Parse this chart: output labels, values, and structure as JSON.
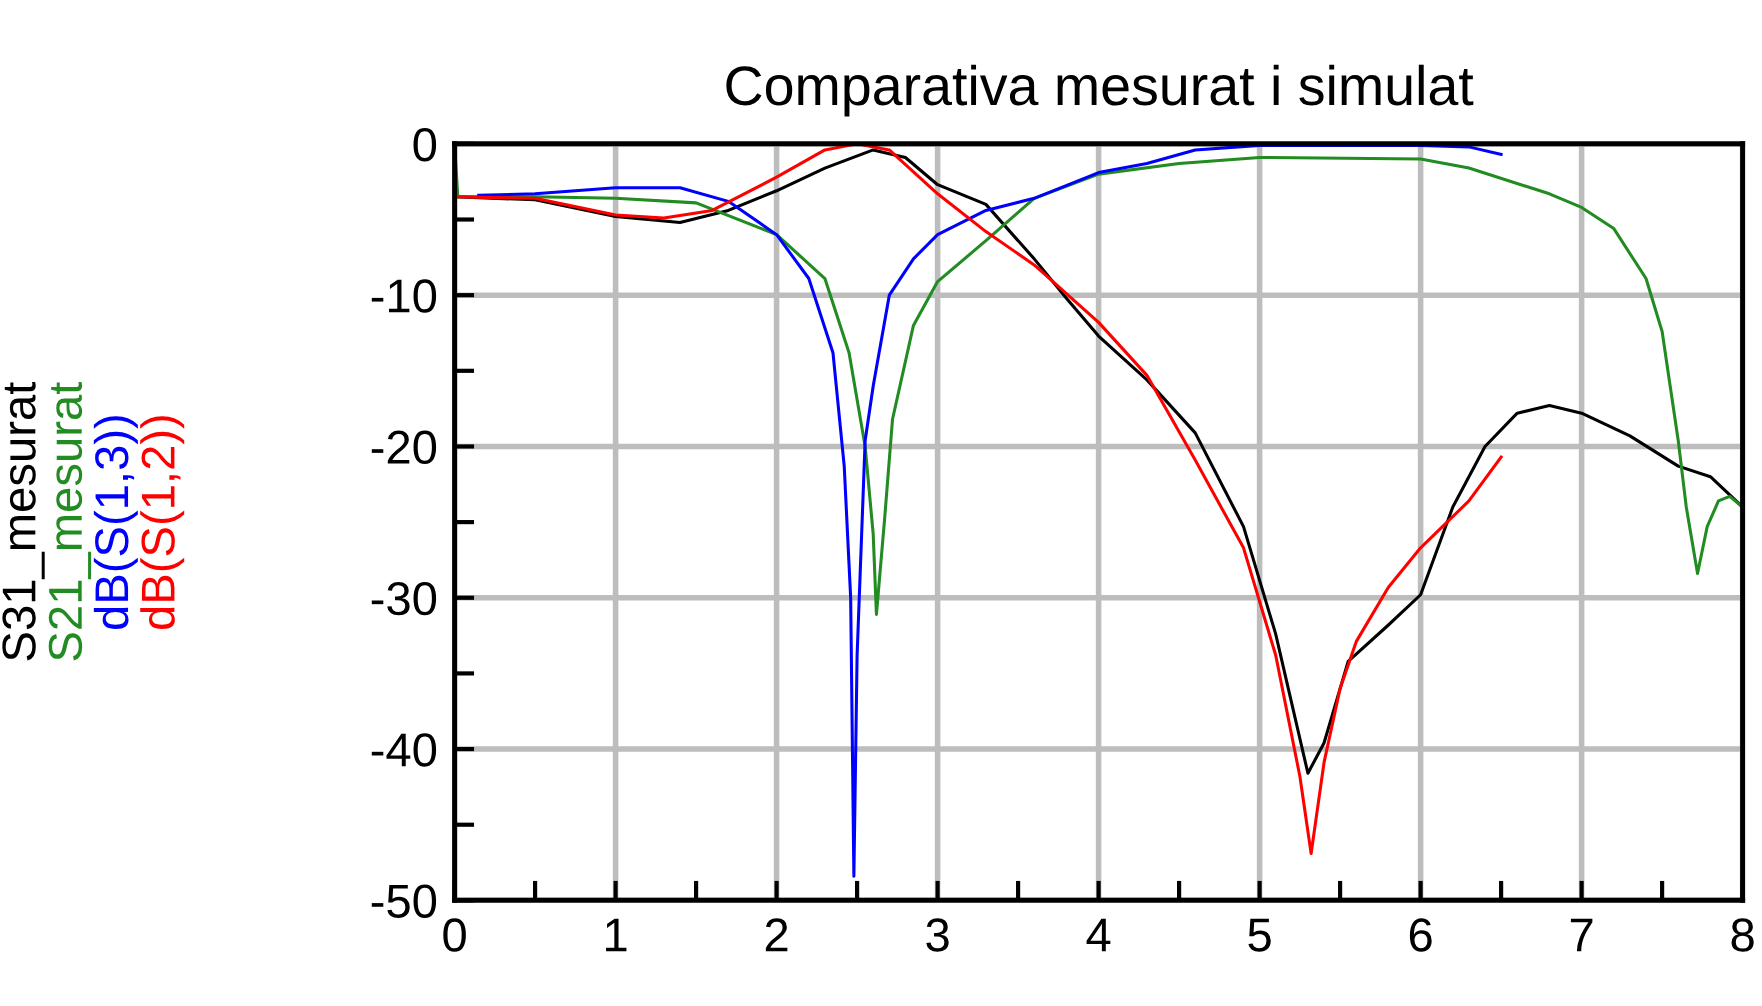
{
  "chart_data": {
    "type": "line",
    "title": "Comparativa mesurat i simulat",
    "xlim": [
      0,
      8
    ],
    "ylim": [
      -50,
      0
    ],
    "xticks": [
      0,
      {
        "value": 0.5,
        "label": null
      },
      1,
      {
        "value": 1.5,
        "label": null
      },
      2,
      {
        "value": 2.5,
        "label": null
      },
      3,
      {
        "value": 3.5,
        "label": null
      },
      4,
      {
        "value": 4.5,
        "label": null
      },
      5,
      {
        "value": 5.5,
        "label": null
      },
      6,
      {
        "value": 6.5,
        "label": null
      },
      7,
      {
        "value": 7.5,
        "label": null
      },
      8
    ],
    "yticks": [
      -50,
      {
        "value": -45,
        "label": null
      },
      -40,
      {
        "value": -35,
        "label": null
      },
      -30,
      {
        "value": -25,
        "label": null
      },
      -20,
      {
        "value": -15,
        "label": null
      },
      -10,
      {
        "value": -5,
        "label": null
      },
      0
    ],
    "grid": true,
    "legend": "left",
    "line_style": "solid",
    "marker": "none",
    "series": [
      {
        "name": "S31_mesurat",
        "color": "#000000",
        "x": [
          0,
          0.5,
          1,
          1.4,
          1.7,
          2,
          2.3,
          2.6,
          2.8,
          3,
          3.3,
          3.6,
          3.8,
          4,
          4.3,
          4.6,
          4.9,
          5.1,
          5.3,
          5.4,
          5.55,
          5.8,
          6,
          6.2,
          6.4,
          6.6,
          6.8,
          7,
          7.3,
          7.6,
          7.8,
          8
        ],
        "values": [
          -3.5,
          -3.7,
          -4.8,
          -5.2,
          -4.4,
          -3.1,
          -1.6,
          -0.4,
          -0.9,
          -2.7,
          -4,
          -7.6,
          -10.2,
          -12.7,
          -15.6,
          -19.1,
          -25.3,
          -32.4,
          -41.6,
          -39.6,
          -34.2,
          -31.8,
          -29.8,
          -24,
          -20,
          -17.8,
          -17.3,
          -17.8,
          -19.3,
          -21.3,
          -22,
          -24
        ]
      },
      {
        "name": "S21_mesurat",
        "color": "#228b22",
        "x": [
          0,
          0.02,
          0.5,
          1,
          1.5,
          2,
          2.3,
          2.45,
          2.55,
          2.6,
          2.62,
          2.67,
          2.72,
          2.85,
          3,
          3.3,
          3.6,
          4,
          4.5,
          5,
          6,
          6.3,
          6.8,
          7,
          7.2,
          7.4,
          7.5,
          7.6,
          7.65,
          7.72,
          7.78,
          7.85,
          7.92,
          8
        ],
        "values": [
          0,
          -3.5,
          -3.5,
          -3.6,
          -3.9,
          -6,
          -8.9,
          -13.8,
          -20,
          -25.8,
          -31.1,
          -24.9,
          -18.2,
          -12,
          -9.1,
          -6.4,
          -3.6,
          -2,
          -1.3,
          -0.9,
          -1,
          -1.6,
          -3.3,
          -4.2,
          -5.6,
          -8.9,
          -12.4,
          -19.6,
          -24,
          -28.4,
          -25.3,
          -23.6,
          -23.3,
          -24
        ]
      },
      {
        "name": "dB(S(1,3))",
        "color": "#0000ff",
        "x": [
          0.15,
          0.5,
          1,
          1.4,
          1.7,
          2,
          2.2,
          2.35,
          2.42,
          2.46,
          2.48,
          2.5,
          2.55,
          2.6,
          2.7,
          2.85,
          3,
          3.3,
          3.6,
          4,
          4.3,
          4.6,
          5,
          6,
          6.3,
          6.5
        ],
        "values": [
          -3.4,
          -3.3,
          -2.9,
          -2.9,
          -3.8,
          -6,
          -8.9,
          -13.8,
          -21.3,
          -30,
          -48.4,
          -33.8,
          -19.6,
          -16,
          -10,
          -7.6,
          -6,
          -4.4,
          -3.6,
          -1.9,
          -1.3,
          -0.4,
          -0.1,
          -0.1,
          -0.2,
          -0.7
        ]
      },
      {
        "name": "dB(S(1,2))",
        "color": "#ff0000",
        "x": [
          0,
          0.5,
          1,
          1.3,
          1.6,
          2,
          2.3,
          2.5,
          2.7,
          3,
          3.3,
          3.6,
          4,
          4.3,
          4.6,
          4.9,
          5.1,
          5.25,
          5.32,
          5.4,
          5.5,
          5.6,
          5.8,
          6,
          6.3,
          6.5
        ],
        "values": [
          -3.5,
          -3.6,
          -4.7,
          -4.9,
          -4.4,
          -2.2,
          -0.4,
          0,
          -0.4,
          -3.3,
          -5.8,
          -8,
          -11.8,
          -15.3,
          -20.9,
          -26.7,
          -33.8,
          -41.8,
          -46.9,
          -40.9,
          -36,
          -32.9,
          -29.3,
          -26.7,
          -23.6,
          -20.7
        ]
      }
    ]
  }
}
